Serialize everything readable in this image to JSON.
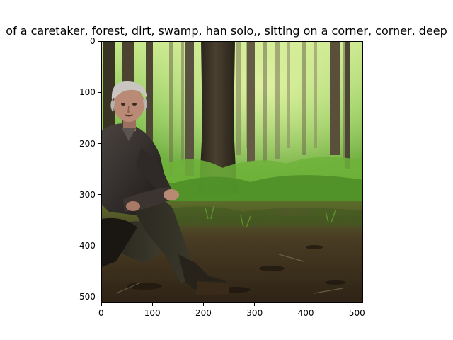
{
  "plot": {
    "title": "of a caretaker,  forest, dirt, swamp, han solo,, sitting on a corner, corner, deep",
    "image": {
      "icon": "photo-forest-old-man-sitting"
    },
    "x_axis": {
      "ticks": [
        "0",
        "100",
        "200",
        "300",
        "400",
        "500"
      ],
      "tick_values": [
        0,
        100,
        200,
        300,
        400,
        500
      ],
      "range": [
        0,
        512
      ]
    },
    "y_axis": {
      "ticks": [
        "0",
        "100",
        "200",
        "300",
        "400",
        "500"
      ],
      "tick_values": [
        0,
        100,
        200,
        300,
        400,
        500
      ],
      "range": [
        0,
        512
      ]
    }
  }
}
